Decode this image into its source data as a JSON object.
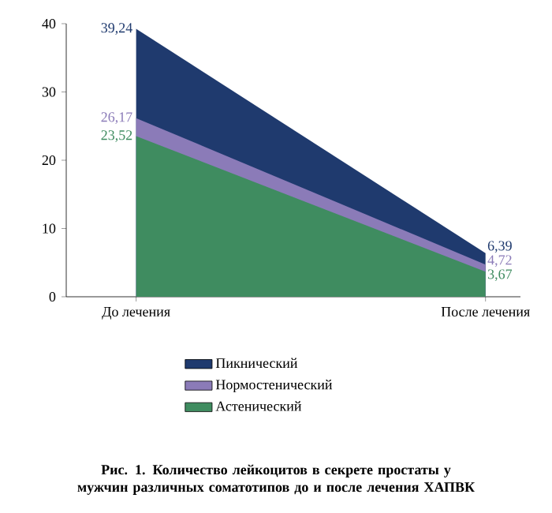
{
  "chart_data": {
    "type": "area",
    "title": "Рис. 1. Количество лейкоцитов в секрете простаты у мужчин различных соматотипов до и после лечения ХАПВК",
    "categories": [
      "До лечения",
      "После лечения"
    ],
    "series": [
      {
        "name": "Пикнический",
        "color": "#1f3a6e",
        "values": [
          39.24,
          6.39
        ],
        "value_labels": [
          "39,24",
          "6,39"
        ]
      },
      {
        "name": "Нормостенический",
        "color": "#8b7bb8",
        "values": [
          26.17,
          4.72
        ],
        "value_labels": [
          "26,17",
          "4,72"
        ]
      },
      {
        "name": "Астенический",
        "color": "#3f8c60",
        "values": [
          23.52,
          3.67
        ],
        "value_labels": [
          "23,52",
          "3,67"
        ]
      }
    ],
    "ylim": [
      0,
      40
    ],
    "yticks": [
      0,
      10,
      20,
      30,
      40
    ],
    "legend": "bottom"
  }
}
